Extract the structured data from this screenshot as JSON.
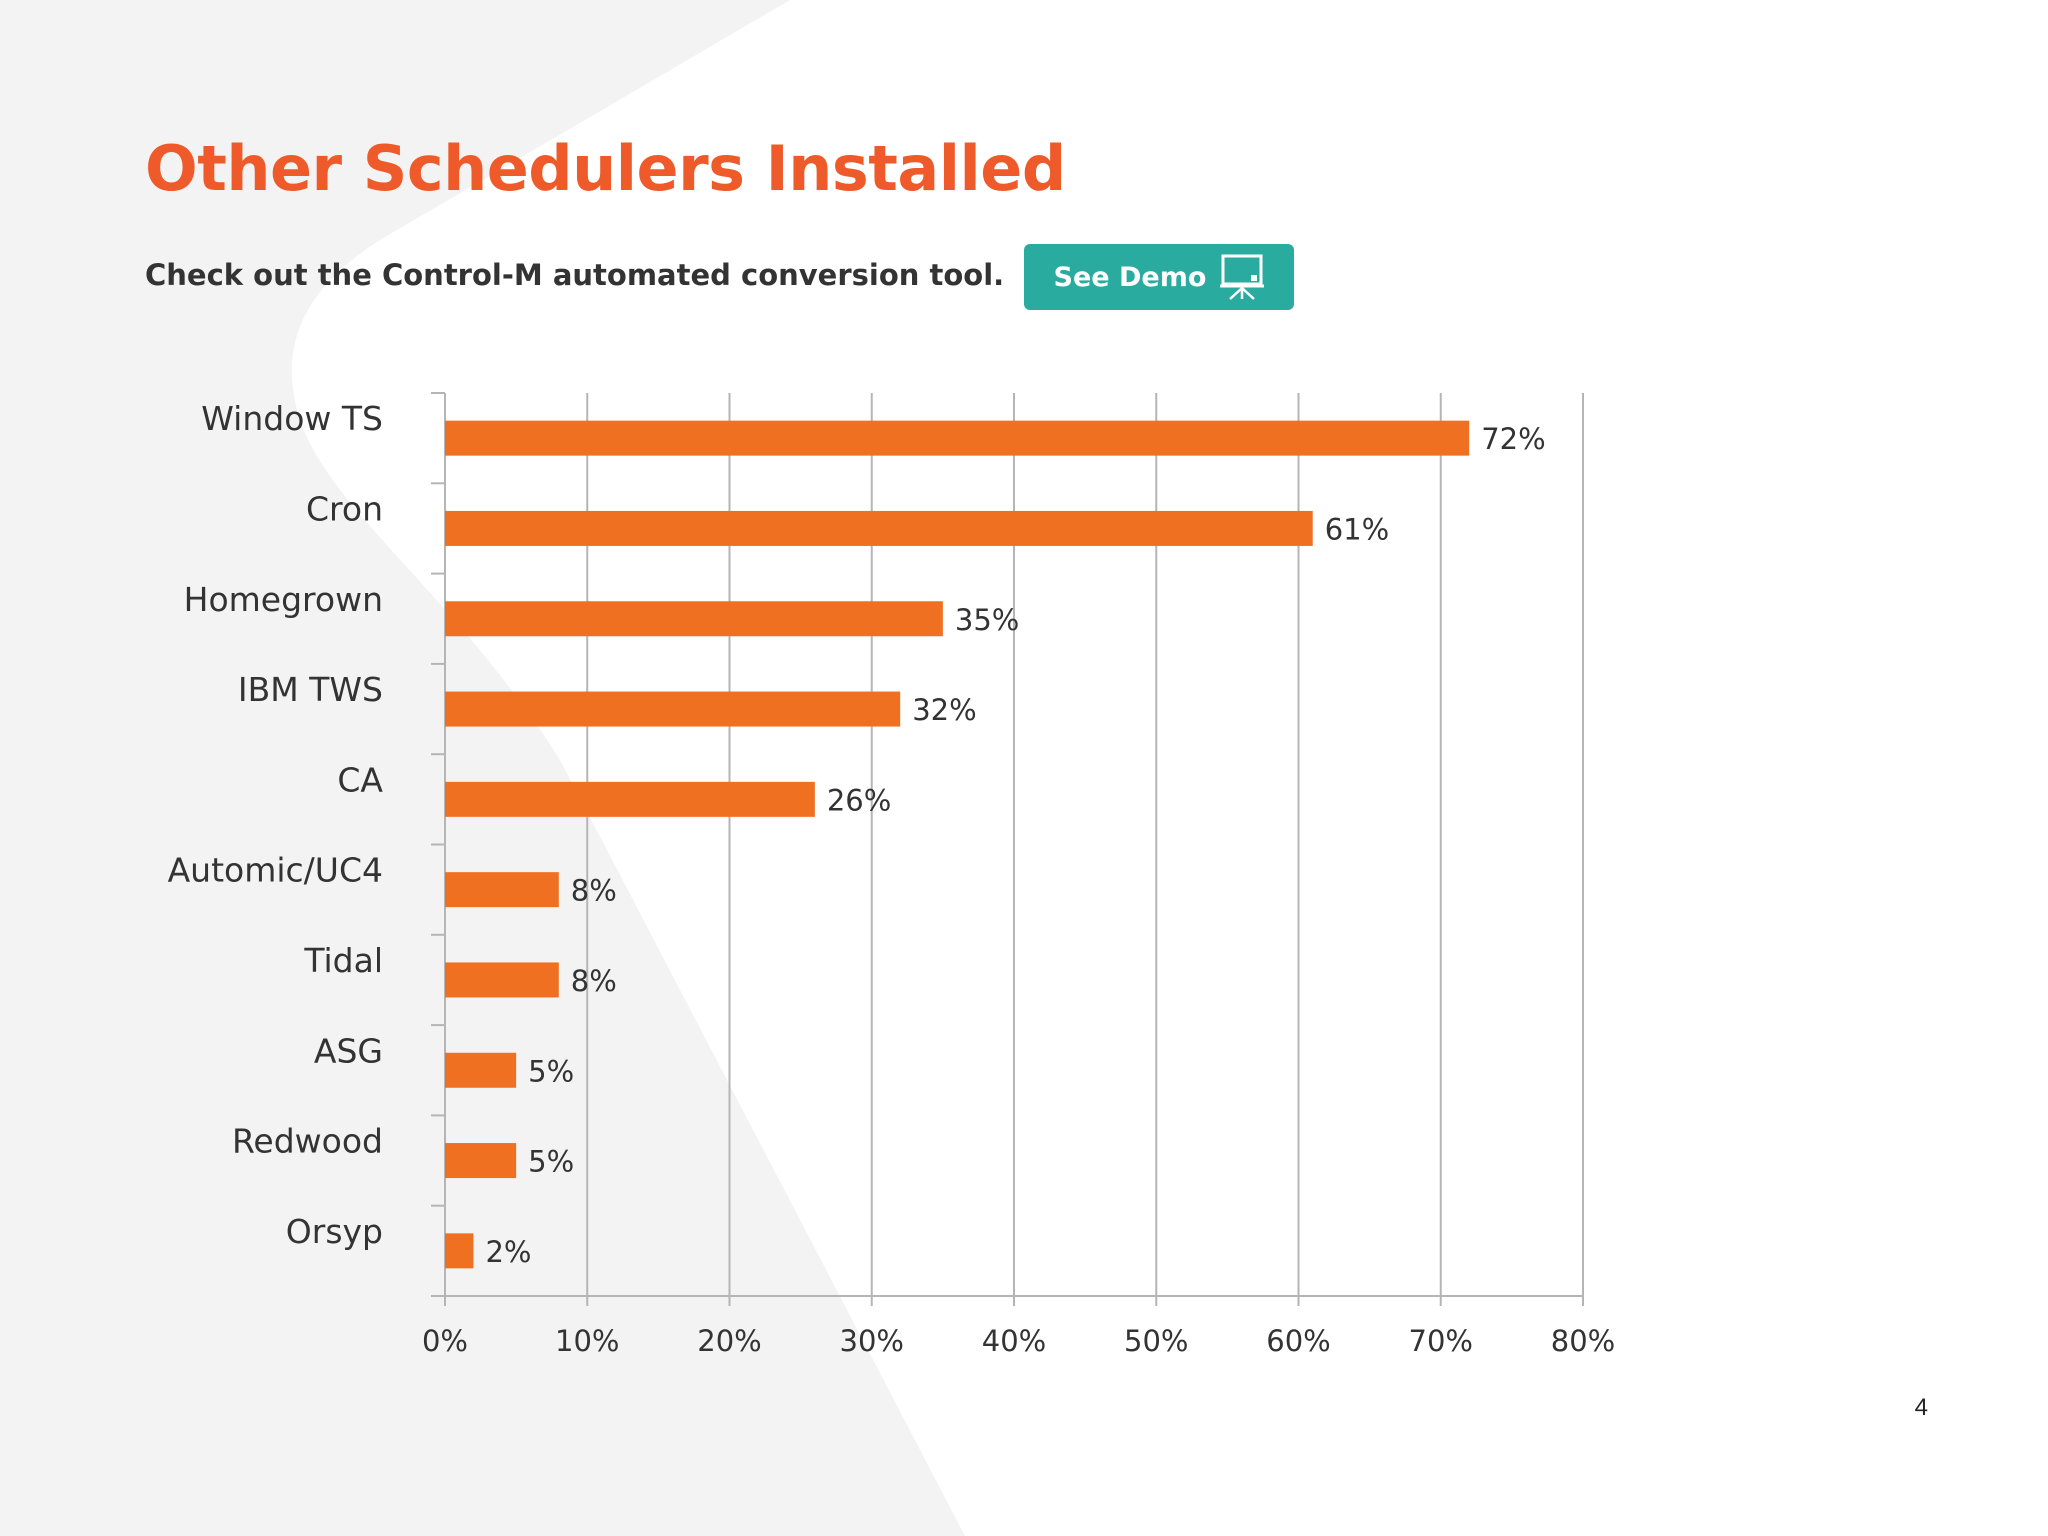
{
  "slide": {
    "title": "Other Schedulers Installed",
    "subtitle": "Check out the Control-M automated conversion tool.",
    "demo_button_label": "See Demo",
    "demo_button_icon": "presentation-board-icon",
    "page_number": "4"
  },
  "colors": {
    "title": "#ee5a2a",
    "bar": "#f07022",
    "button": "#2aaba0",
    "text": "#333333",
    "grid": "#b5b5b5",
    "background_light": "#f4f3f3",
    "background_white": "#ffffff"
  },
  "chart_data": {
    "type": "bar",
    "orientation": "horizontal",
    "categories": [
      "Window TS",
      "Cron",
      "Homegrown",
      "IBM TWS",
      "CA",
      "Automic/UC4",
      "Tidal",
      "ASG",
      "Redwood",
      "Orsyp"
    ],
    "values": [
      72,
      61,
      35,
      32,
      26,
      8,
      8,
      5,
      5,
      2
    ],
    "value_labels": [
      "72%",
      "61%",
      "35%",
      "32%",
      "26%",
      "8%",
      "8%",
      "5%",
      "5%",
      "2%"
    ],
    "xlim": [
      0,
      80
    ],
    "ticks": [
      0,
      10,
      20,
      30,
      40,
      50,
      60,
      70,
      80
    ],
    "tick_labels": [
      "0%",
      "10%",
      "20%",
      "30%",
      "40%",
      "50%",
      "60%",
      "70%",
      "80%"
    ],
    "grid": true,
    "legend": "none"
  }
}
